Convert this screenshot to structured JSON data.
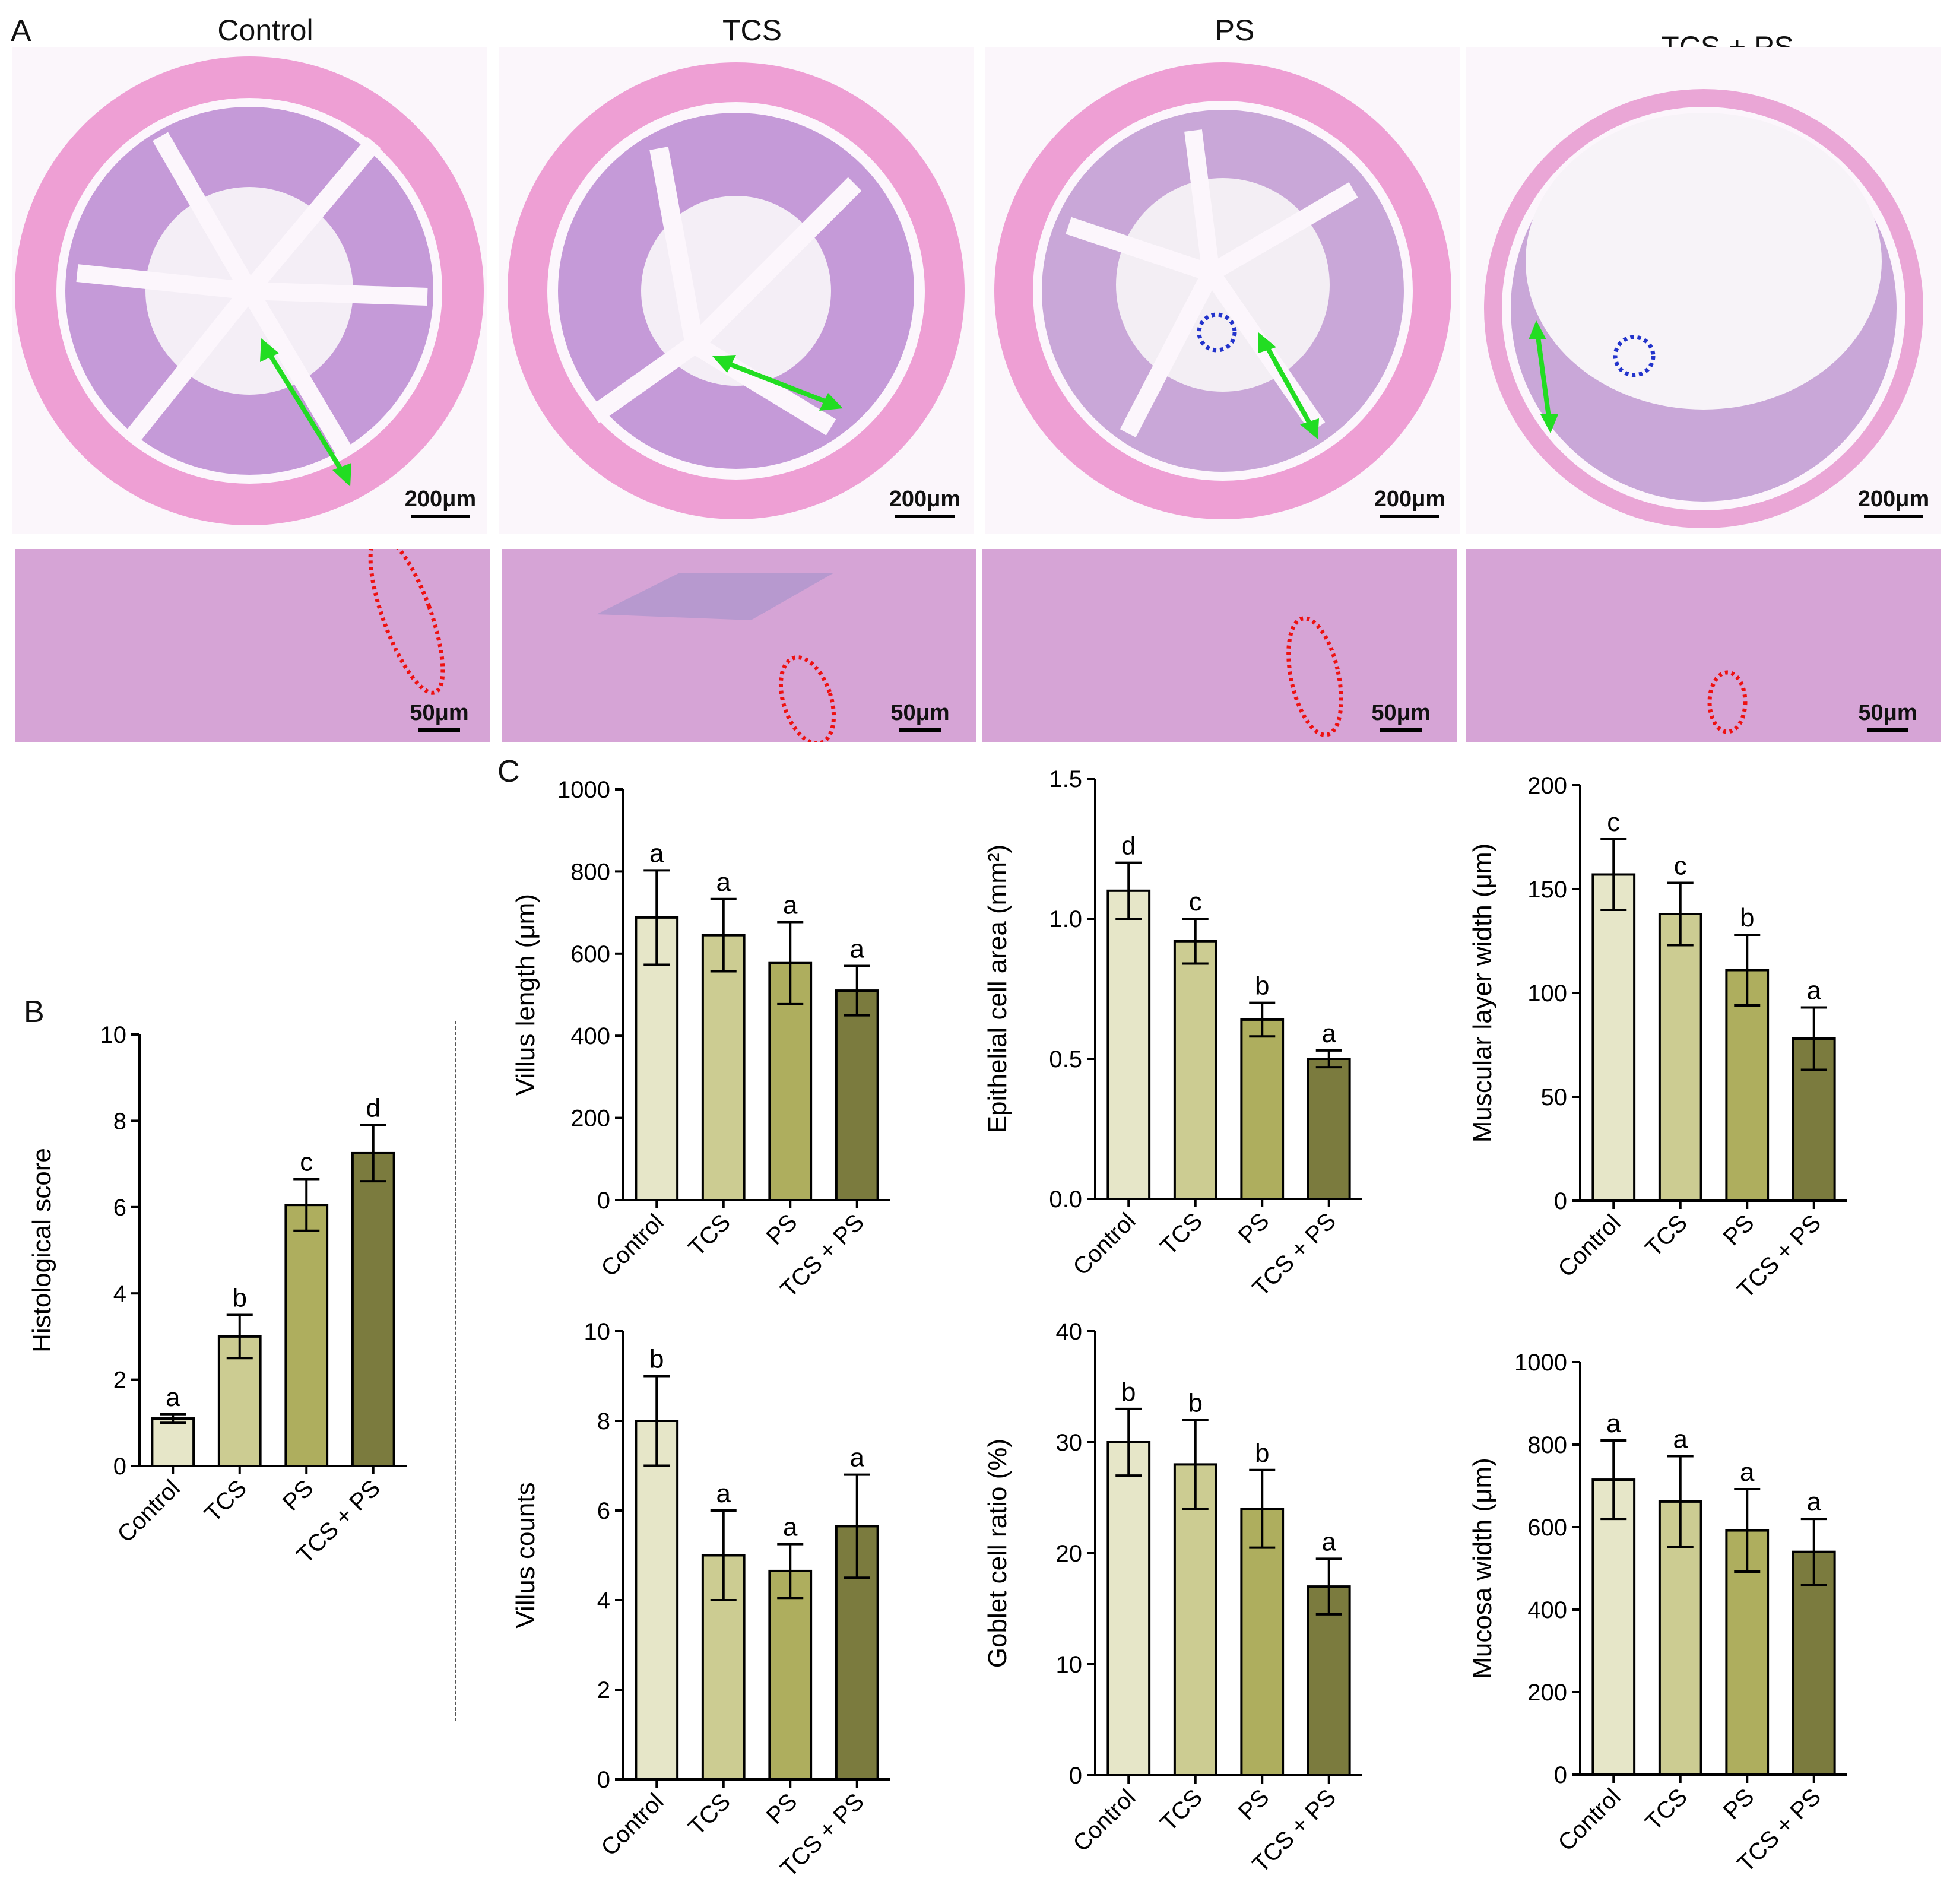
{
  "panel_labels": {
    "a": "A",
    "b": "B",
    "c": "C"
  },
  "micrographs": [
    {
      "title": "Control",
      "scale_large": "200μm",
      "scale_small": "50μm"
    },
    {
      "title": "TCS",
      "scale_large": "200μm",
      "scale_small": "50μm"
    },
    {
      "title": "PS",
      "scale_large": "200μm",
      "scale_small": "50μm"
    },
    {
      "title": "TCS + PS",
      "scale_large": "200μm",
      "scale_small": "50μm"
    }
  ],
  "colors": {
    "bar_fills": [
      "#e6e6c8",
      "#cccc92",
      "#aeae5e",
      "#7b7b3e"
    ],
    "tissue_pink": "#e9a5d6",
    "tissue_purple": "#b88bd0",
    "arrow_green": "#22dd22",
    "circle_red": "#ee1111",
    "circle_blue": "#2233cc"
  },
  "chart_data": [
    {
      "id": "histo",
      "type": "bar",
      "ylabel": "Histological score",
      "categories": [
        "Control",
        "TCS",
        "PS",
        "TCS + PS"
      ],
      "values": [
        1.1,
        3.0,
        6.05,
        7.25
      ],
      "errors": [
        0.1,
        0.5,
        0.6,
        0.65
      ],
      "letters": [
        "a",
        "b",
        "c",
        "d"
      ],
      "ylim": [
        0,
        10
      ],
      "yticks": [
        "0",
        "2",
        "4",
        "6",
        "8",
        "10"
      ]
    },
    {
      "id": "villus_length",
      "type": "bar",
      "ylabel": "Villus length (μm)",
      "categories": [
        "Control",
        "TCS",
        "PS",
        "TCS + PS"
      ],
      "values": [
        688,
        645,
        577,
        510
      ],
      "errors": [
        115,
        88,
        100,
        60
      ],
      "letters": [
        "a",
        "a",
        "a",
        "a"
      ],
      "ylim": [
        0,
        1000
      ],
      "yticks": [
        "0",
        "200",
        "400",
        "600",
        "800",
        "1000"
      ]
    },
    {
      "id": "epithelial_area",
      "type": "bar",
      "ylabel": "Epithelial cell area (mm²)",
      "categories": [
        "Control",
        "TCS",
        "PS",
        "TCS + PS"
      ],
      "values": [
        1.1,
        0.92,
        0.64,
        0.5
      ],
      "errors": [
        0.1,
        0.08,
        0.06,
        0.03
      ],
      "letters": [
        "d",
        "c",
        "b",
        "a"
      ],
      "ylim": [
        0,
        1.5
      ],
      "yticks": [
        "0.0",
        "0.5",
        "1.0",
        "1.5"
      ]
    },
    {
      "id": "muscular_width",
      "type": "bar",
      "ylabel": "Muscular layer width (μm)",
      "categories": [
        "Control",
        "TCS",
        "PS",
        "TCS + PS"
      ],
      "values": [
        157,
        138,
        111,
        78
      ],
      "errors": [
        17,
        15,
        17,
        15
      ],
      "letters": [
        "c",
        "c",
        "b",
        "a"
      ],
      "ylim": [
        0,
        200
      ],
      "yticks": [
        "0",
        "50",
        "100",
        "150",
        "200"
      ]
    },
    {
      "id": "villus_counts",
      "type": "bar",
      "ylabel": "Villus counts",
      "categories": [
        "Control",
        "TCS",
        "PS",
        "TCS + PS"
      ],
      "values": [
        8.0,
        5.0,
        4.65,
        5.65
      ],
      "errors": [
        1.0,
        1.0,
        0.6,
        1.15
      ],
      "letters": [
        "b",
        "a",
        "a",
        "a"
      ],
      "ylim": [
        0,
        10
      ],
      "yticks": [
        "0",
        "2",
        "4",
        "6",
        "8",
        "10"
      ]
    },
    {
      "id": "goblet_ratio",
      "type": "bar",
      "ylabel": "Goblet cell ratio (%)",
      "categories": [
        "Control",
        "TCS",
        "PS",
        "TCS + PS"
      ],
      "values": [
        30,
        28,
        24,
        17
      ],
      "errors": [
        3,
        4,
        3.5,
        2.5
      ],
      "letters": [
        "b",
        "b",
        "b",
        "a"
      ],
      "ylim": [
        0,
        40
      ],
      "yticks": [
        "0",
        "10",
        "20",
        "30",
        "40"
      ]
    },
    {
      "id": "mucosa_width",
      "type": "bar",
      "ylabel": "Mucosa width (μm)",
      "categories": [
        "Control",
        "TCS",
        "PS",
        "TCS + PS"
      ],
      "values": [
        715,
        662,
        592,
        540
      ],
      "errors": [
        95,
        110,
        100,
        80
      ],
      "letters": [
        "a",
        "a",
        "a",
        "a"
      ],
      "ylim": [
        0,
        1000
      ],
      "yticks": [
        "0",
        "200",
        "400",
        "600",
        "800",
        "1000"
      ]
    }
  ]
}
